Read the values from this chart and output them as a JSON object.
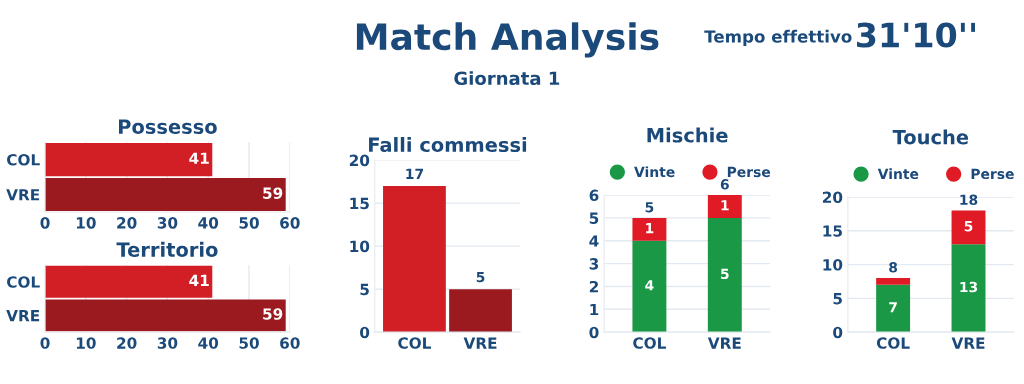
{
  "chart_data": [
    {
      "type": "other",
      "title": "Match Analysis",
      "subtitle": "Giornata 1",
      "annotations": [
        "Tempo effettivo",
        "31'10''"
      ]
    },
    {
      "type": "bar",
      "orientation": "horizontal",
      "title": "Possesso",
      "categories": [
        "COL",
        "VRE"
      ],
      "values": [
        41,
        59
      ],
      "colors": [
        "#d21f26",
        "#9a1a20"
      ],
      "xlim": [
        0,
        60
      ],
      "xticks": [
        0,
        10,
        20,
        30,
        40,
        50,
        60
      ],
      "grid": "x",
      "data_labels": true
    },
    {
      "type": "bar",
      "orientation": "horizontal",
      "title": "Territorio",
      "categories": [
        "COL",
        "VRE"
      ],
      "values": [
        41,
        59
      ],
      "colors": [
        "#d21f26",
        "#9a1a20"
      ],
      "xlim": [
        0,
        60
      ],
      "xticks": [
        0,
        10,
        20,
        30,
        40,
        50,
        60
      ],
      "grid": "x",
      "data_labels": true
    },
    {
      "type": "bar",
      "title": "Falli commessi",
      "categories": [
        "COL",
        "VRE"
      ],
      "values": [
        17,
        5
      ],
      "colors": [
        "#d21f26",
        "#9a1a20"
      ],
      "ylim": [
        0,
        20
      ],
      "yticks": [
        0,
        5,
        10,
        15,
        20
      ],
      "grid": "y",
      "data_labels": true
    },
    {
      "type": "bar",
      "stacked": true,
      "title": "Mischie",
      "categories": [
        "COL",
        "VRE"
      ],
      "series": [
        {
          "name": "Vinte",
          "color": "#1b9846",
          "values": [
            4,
            5
          ]
        },
        {
          "name": "Perse",
          "color": "#e01b25",
          "values": [
            1,
            1
          ]
        }
      ],
      "totals": [
        "5",
        "6"
      ],
      "ylim": [
        0,
        6
      ],
      "yticks": [
        0,
        1,
        2,
        3,
        4,
        5,
        6
      ],
      "grid": "y",
      "legend": "top",
      "data_labels": true
    },
    {
      "type": "bar",
      "stacked": true,
      "title": "Touche",
      "categories": [
        "COL",
        "VRE"
      ],
      "series": [
        {
          "name": "Vinte",
          "color": "#1b9846",
          "values": [
            7,
            13
          ],
          "value_labels": [
            "7",
            "13"
          ]
        },
        {
          "name": "Perse",
          "color": "#e01b25",
          "values": [
            1,
            5
          ],
          "value_labels": [
            null,
            "5"
          ]
        }
      ],
      "totals": [
        "8",
        "18"
      ],
      "ylim": [
        0,
        20
      ],
      "yticks": [
        0,
        5,
        10,
        15,
        20
      ],
      "grid": "y",
      "legend": "top"
    }
  ]
}
